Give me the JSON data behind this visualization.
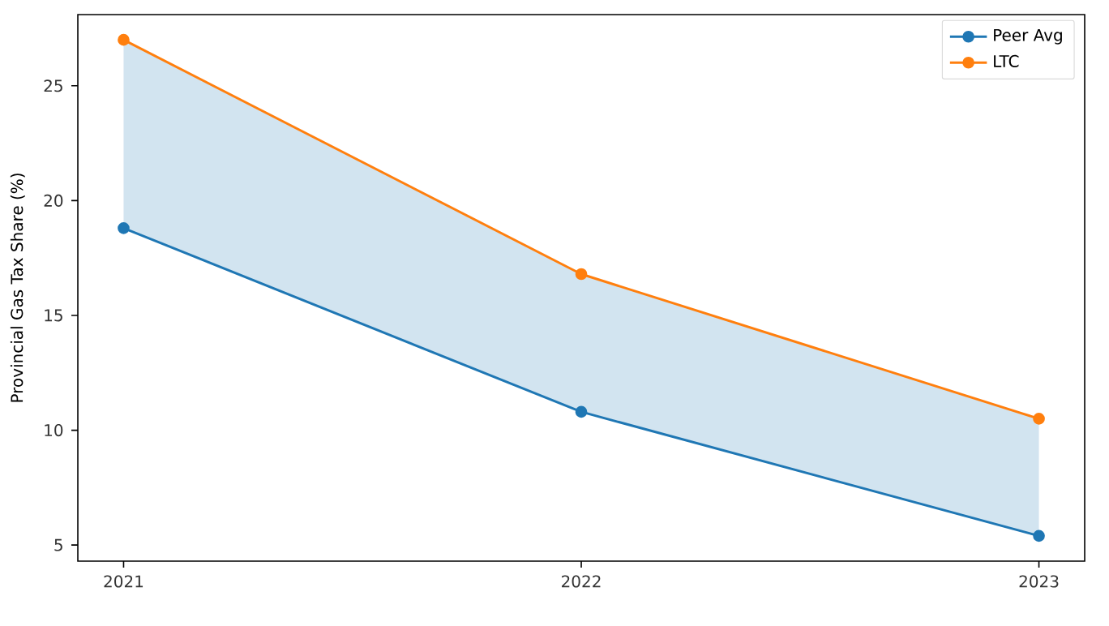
{
  "chart_data": {
    "type": "line",
    "ylabel": "Provincial Gas Tax Share (%)",
    "x": [
      2021,
      2022,
      2023
    ],
    "series": [
      {
        "name": "Peer Avg",
        "color": "#1f77b4",
        "values": [
          18.8,
          10.8,
          5.4
        ],
        "lower": [
          18.8,
          10.8,
          5.4
        ],
        "upper": [
          27.0,
          16.8,
          10.5
        ]
      },
      {
        "name": "LTC",
        "color": "#ff7f0e",
        "values": [
          27.0,
          16.8,
          10.5
        ]
      }
    ],
    "xlim": [
      2020.9,
      2023.1
    ],
    "xticks": [
      2021,
      2022,
      2023
    ],
    "ylim": [
      4.3,
      28.1
    ],
    "yticks": [
      5,
      10,
      15,
      20,
      25
    ],
    "grid": false,
    "legend": "top right",
    "marker": "circle",
    "line_style": "solid"
  }
}
